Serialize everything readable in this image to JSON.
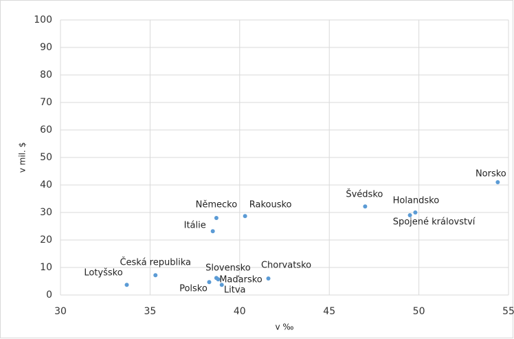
{
  "chart_data": {
    "type": "scatter",
    "x_label": "v ‰",
    "y_label": "v mil. $",
    "point_labels": [
      "Lotyšsko",
      "Česká republika",
      "Polsko",
      "Slovensko",
      "Maďarsko",
      "Litva",
      "Chorvatsko",
      "Itálie",
      "Německo",
      "Rakousko",
      "Švédsko",
      "Holandsko",
      "Spojené království",
      "Norsko"
    ],
    "x": [
      33.7,
      35.3,
      38.3,
      38.7,
      38.8,
      39.0,
      41.6,
      38.5,
      38.7,
      40.3,
      47.0,
      49.8,
      49.5,
      54.4
    ],
    "series": [
      {
        "color": "#5b9bd5",
        "values": [
          3.7,
          7.2,
          4.7,
          6.2,
          5.7,
          3.7,
          6.0,
          23.2,
          28.0,
          28.7,
          32.2,
          30.0,
          29.0,
          41.0
        ]
      }
    ],
    "xlim": [
      30,
      55
    ],
    "xticks": [
      30,
      35,
      40,
      45,
      50,
      55
    ],
    "ylim": [
      0,
      100
    ],
    "yticks": [
      0,
      10,
      20,
      30,
      40,
      50,
      60,
      70,
      80,
      90,
      100
    ],
    "grid": true
  }
}
